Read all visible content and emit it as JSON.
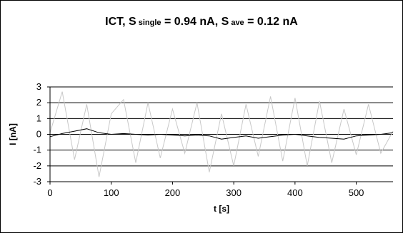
{
  "title": {
    "prefix": "ICT, ",
    "s1": "S",
    "sub1": " single",
    "mid1": " = 0.94 nA, ",
    "s2": "S",
    "sub2": " ave",
    "mid2": " = 0.12 nA"
  },
  "chart_data": {
    "type": "line",
    "title": "ICT, S single = 0.94 nA, S ave = 0.12 nA",
    "xlabel": "t [s]",
    "ylabel": "I [nA]",
    "xlim": [
      0,
      560
    ],
    "ylim": [
      -3,
      3
    ],
    "xticks": [
      0,
      100,
      200,
      300,
      400,
      500
    ],
    "yticks": [
      3,
      2,
      1,
      0,
      -1,
      -2,
      -3
    ],
    "grid": "horizontal",
    "legend": "none",
    "colors": {
      "single": "#c8c8c8",
      "ave": "#000000",
      "grid": "#000000"
    },
    "series": [
      {
        "style": "light-gray",
        "x": [
          0,
          20,
          40,
          60,
          80,
          100,
          120,
          140,
          160,
          180,
          200,
          220,
          240,
          260,
          280,
          300,
          320,
          340,
          360,
          380,
          400,
          420,
          440,
          460,
          480,
          500,
          520,
          540,
          560
        ],
        "values": [
          0.1,
          2.7,
          -1.6,
          1.9,
          -2.7,
          1.3,
          2.2,
          -1.8,
          2.0,
          -1.5,
          1.6,
          -1.2,
          2.0,
          -2.4,
          1.3,
          -2.0,
          1.9,
          -1.4,
          2.4,
          -1.7,
          2.3,
          -2.0,
          2.1,
          -1.8,
          1.6,
          -1.3,
          1.9,
          -1.2,
          0.2
        ]
      },
      {
        "style": "black",
        "x": [
          0,
          20,
          40,
          60,
          80,
          100,
          120,
          140,
          160,
          180,
          200,
          220,
          240,
          260,
          280,
          300,
          320,
          340,
          360,
          380,
          400,
          420,
          440,
          460,
          480,
          500,
          520,
          540,
          560
        ],
        "values": [
          -0.15,
          0.05,
          0.2,
          0.35,
          0.1,
          0.0,
          0.05,
          0.0,
          -0.05,
          0.0,
          -0.05,
          -0.1,
          -0.05,
          -0.1,
          -0.3,
          -0.2,
          -0.1,
          -0.25,
          -0.15,
          -0.05,
          0.0,
          -0.1,
          -0.2,
          -0.25,
          -0.3,
          -0.1,
          -0.05,
          0.0,
          0.1
        ]
      }
    ]
  }
}
